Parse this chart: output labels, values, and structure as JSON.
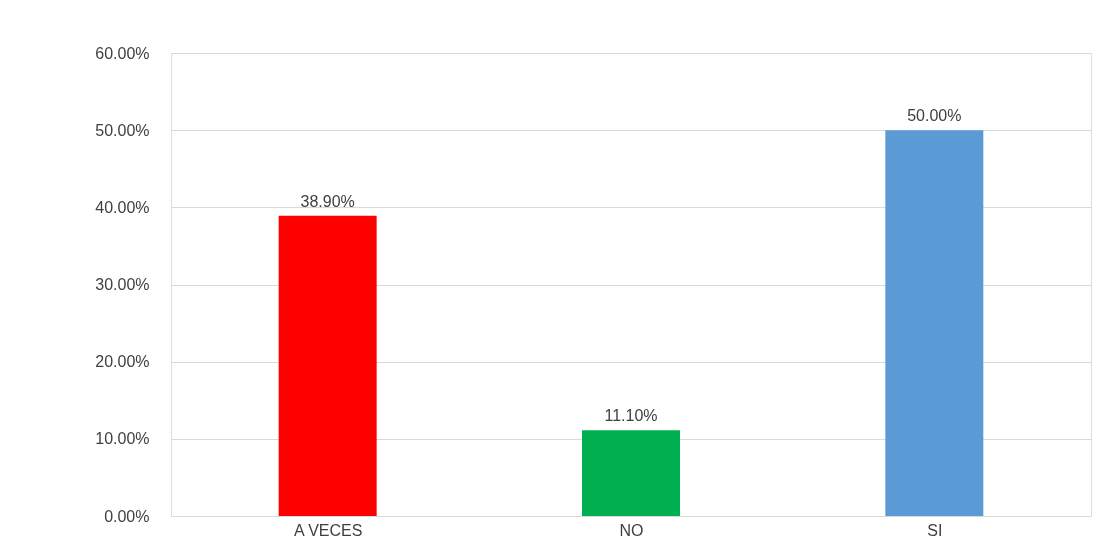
{
  "chart_data": {
    "type": "bar",
    "categories": [
      "A VECES",
      "NO",
      "SI"
    ],
    "values": [
      38.9,
      11.1,
      50.0
    ],
    "colors": [
      "#ff0000",
      "#00b050",
      "#5b9bd5"
    ],
    "value_labels": [
      "38.90%",
      "11.10%",
      "50.00%"
    ],
    "ylim": [
      0,
      60
    ],
    "yticks": [
      {
        "value": 0,
        "label": "0.00%"
      },
      {
        "value": 10,
        "label": "10.00%"
      },
      {
        "value": 20,
        "label": "20.00%"
      },
      {
        "value": 30,
        "label": "30.00%"
      },
      {
        "value": 40,
        "label": "40.00%"
      },
      {
        "value": 50,
        "label": "50.00%"
      },
      {
        "value": 60,
        "label": "60.00%"
      }
    ],
    "grid": "y"
  }
}
